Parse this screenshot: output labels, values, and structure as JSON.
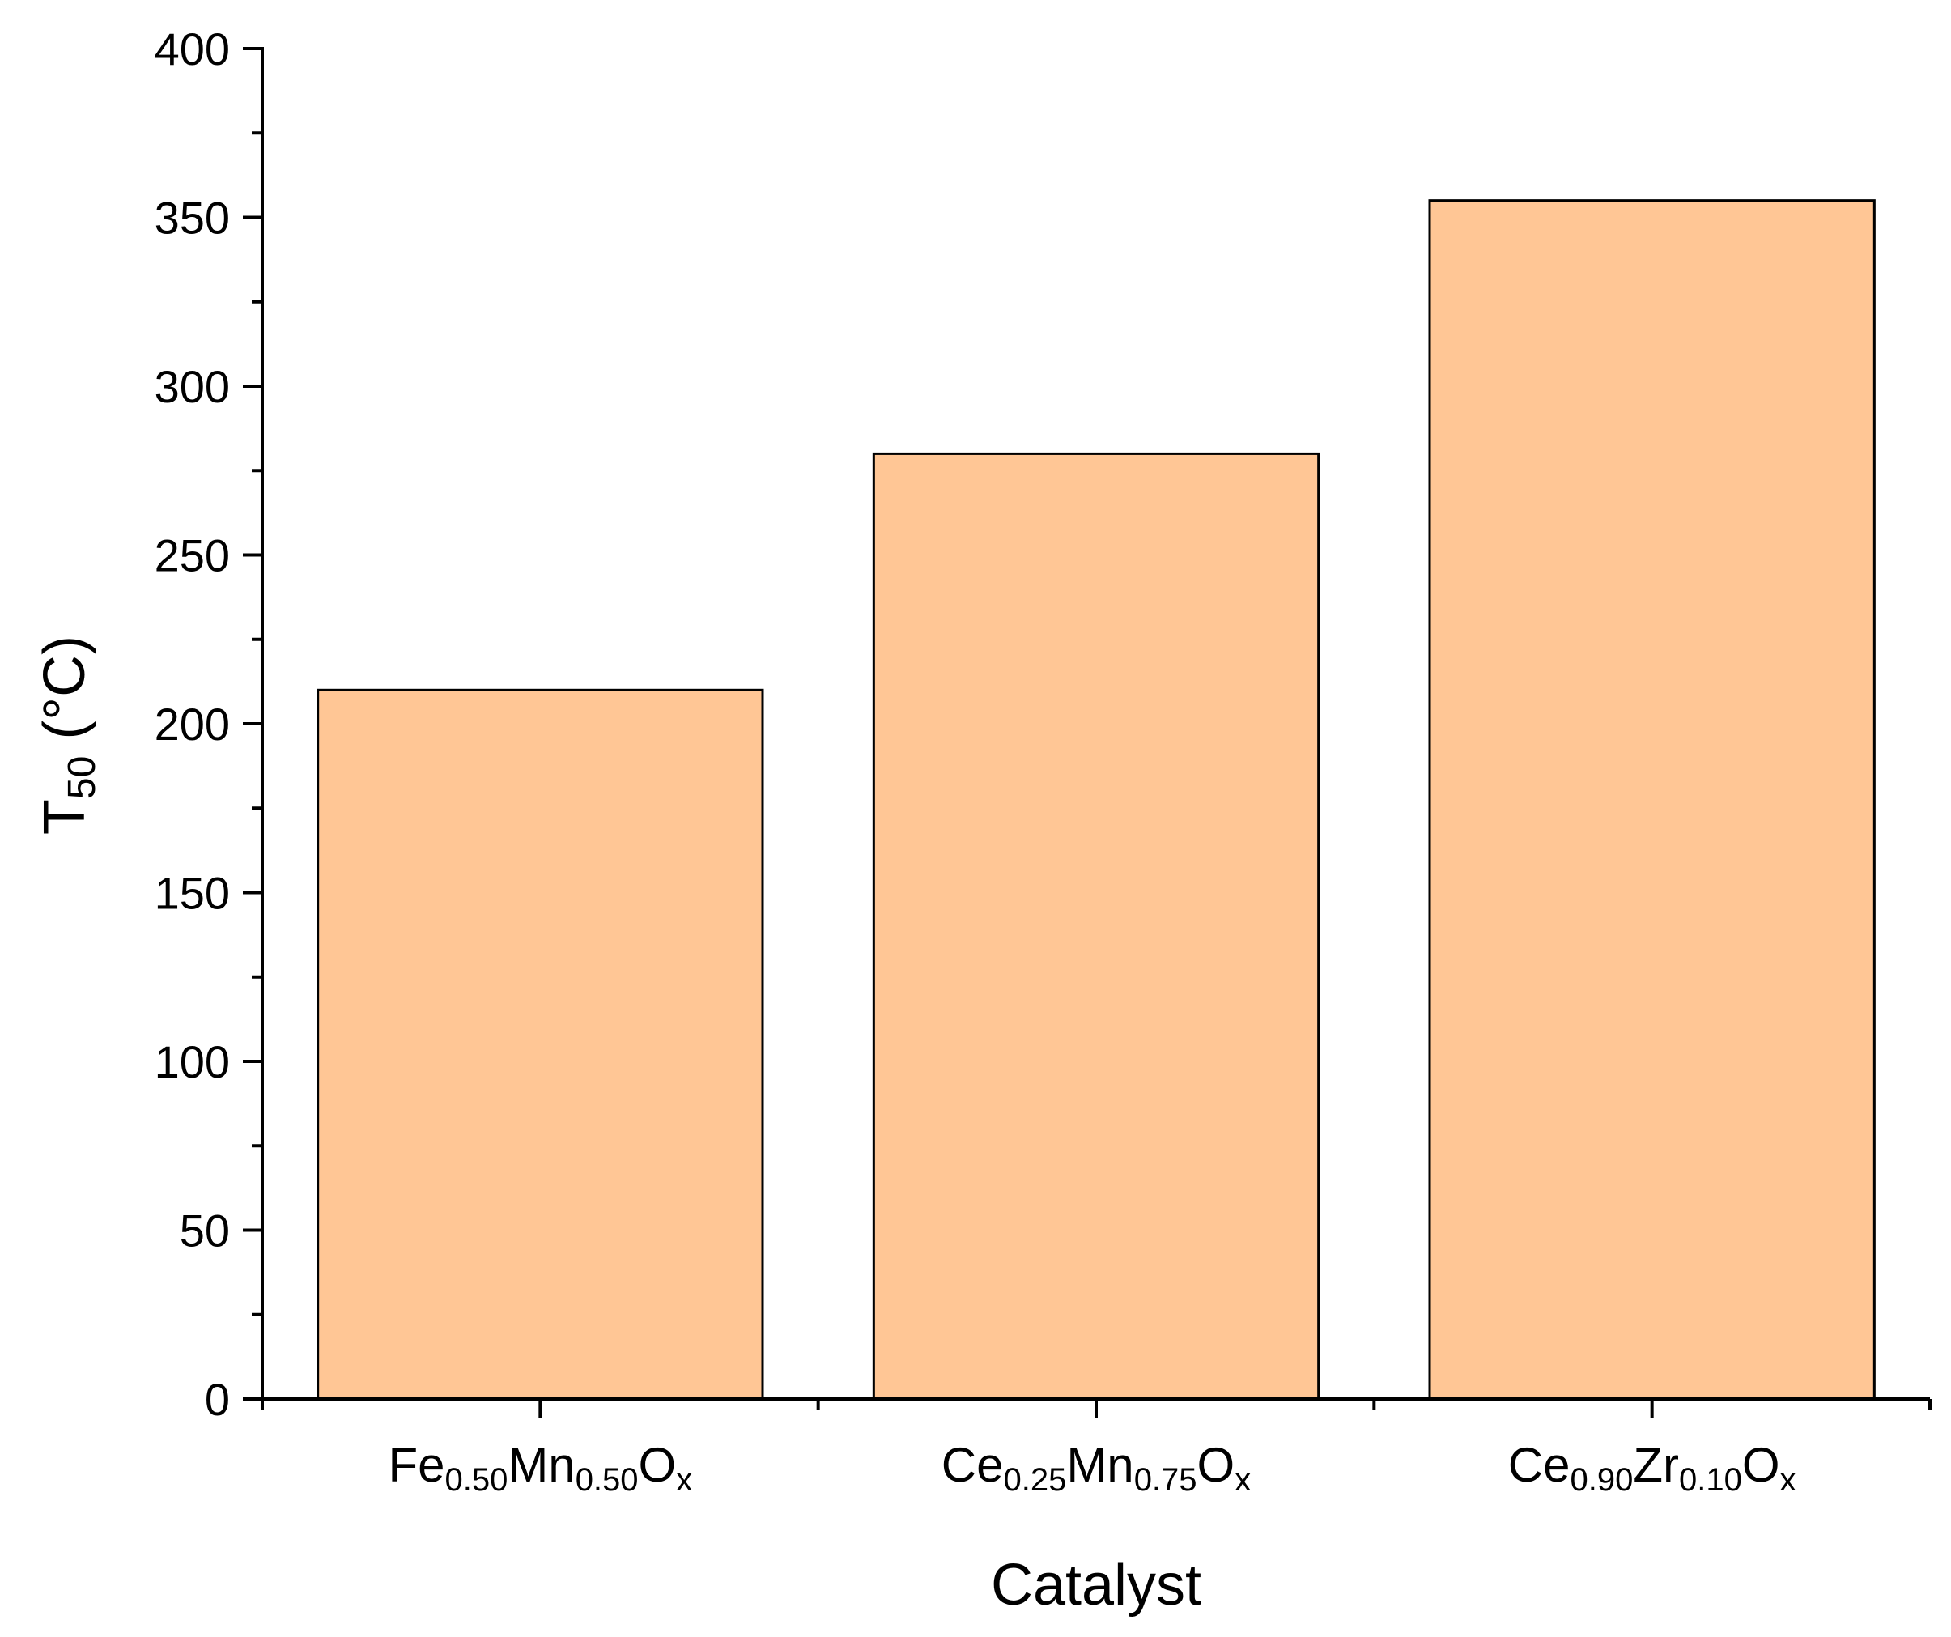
{
  "chart_data": {
    "type": "bar",
    "title": "",
    "categories": [
      {
        "base1": "Fe",
        "sub1": "0.50",
        "base2": "Mn",
        "sub2": "0.50",
        "base3": "O",
        "sub3": "x"
      },
      {
        "base1": "Ce",
        "sub1": "0.25",
        "base2": "Mn",
        "sub2": "0.75",
        "base3": "O",
        "sub3": "x"
      },
      {
        "base1": "Ce",
        "sub1": "0.90",
        "base2": "Zr",
        "sub2": "0.10",
        "base3": "O",
        "sub3": "x"
      }
    ],
    "values": [
      210,
      280,
      355
    ],
    "xlabel": "Catalyst",
    "ylabel": {
      "base": "T",
      "sub": "50",
      "rest": " (°C)"
    },
    "ylim": [
      0,
      400
    ],
    "yticks": [
      "0",
      "50",
      "100",
      "150",
      "200",
      "250",
      "300",
      "350",
      "400"
    ],
    "grid": false,
    "bar_color": "#FFC695",
    "bar_edge_color": "#000000"
  }
}
